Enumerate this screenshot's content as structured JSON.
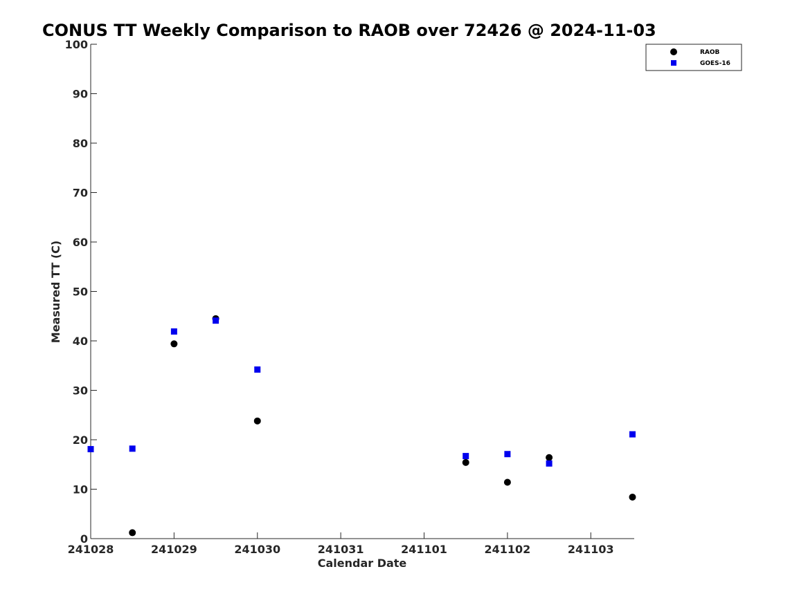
{
  "chart_data": {
    "type": "scatter",
    "title": "CONUS TT Weekly Comparison to RAOB over 72426 @ 2024-11-03",
    "xlabel": "Calendar Date",
    "ylabel": "Measured TT (C)",
    "x_tick_labels": [
      "241028",
      "241029",
      "241030",
      "241031",
      "241101",
      "241102",
      "241103"
    ],
    "x_tick_dates": [
      "2024-10-28",
      "2024-10-29",
      "2024-10-30",
      "2024-10-31",
      "2024-11-01",
      "2024-11-02",
      "2024-11-03"
    ],
    "xlim": [
      "2024-10-28T00:00",
      "2024-11-03T12:30"
    ],
    "y_ticks": [
      0,
      10,
      20,
      30,
      40,
      50,
      60,
      70,
      80,
      90,
      100
    ],
    "ylim": [
      0,
      100
    ],
    "grid": false,
    "legend_position": "top-right",
    "series": [
      {
        "name": "RAOB",
        "marker": "circle",
        "color": "#000000",
        "points": [
          {
            "x": "2024-10-28T12:00",
            "y": 1.2
          },
          {
            "x": "2024-10-29T00:00",
            "y": 39.4
          },
          {
            "x": "2024-10-29T12:00",
            "y": 44.5
          },
          {
            "x": "2024-10-30T00:00",
            "y": 23.8
          },
          {
            "x": "2024-11-01T12:00",
            "y": 15.4
          },
          {
            "x": "2024-11-02T00:00",
            "y": 11.4
          },
          {
            "x": "2024-11-02T12:00",
            "y": 16.4
          },
          {
            "x": "2024-11-03T12:00",
            "y": 8.4
          }
        ]
      },
      {
        "name": "GOES-16",
        "marker": "square",
        "color": "#0000ee",
        "points": [
          {
            "x": "2024-10-28T00:00",
            "y": 18.1
          },
          {
            "x": "2024-10-28T12:00",
            "y": 18.2
          },
          {
            "x": "2024-10-29T00:00",
            "y": 41.9
          },
          {
            "x": "2024-10-29T12:00",
            "y": 44.1
          },
          {
            "x": "2024-10-30T00:00",
            "y": 34.2
          },
          {
            "x": "2024-11-01T12:00",
            "y": 16.7
          },
          {
            "x": "2024-11-02T00:00",
            "y": 17.1
          },
          {
            "x": "2024-11-02T12:00",
            "y": 15.2
          },
          {
            "x": "2024-11-03T12:00",
            "y": 21.1
          }
        ]
      }
    ]
  }
}
